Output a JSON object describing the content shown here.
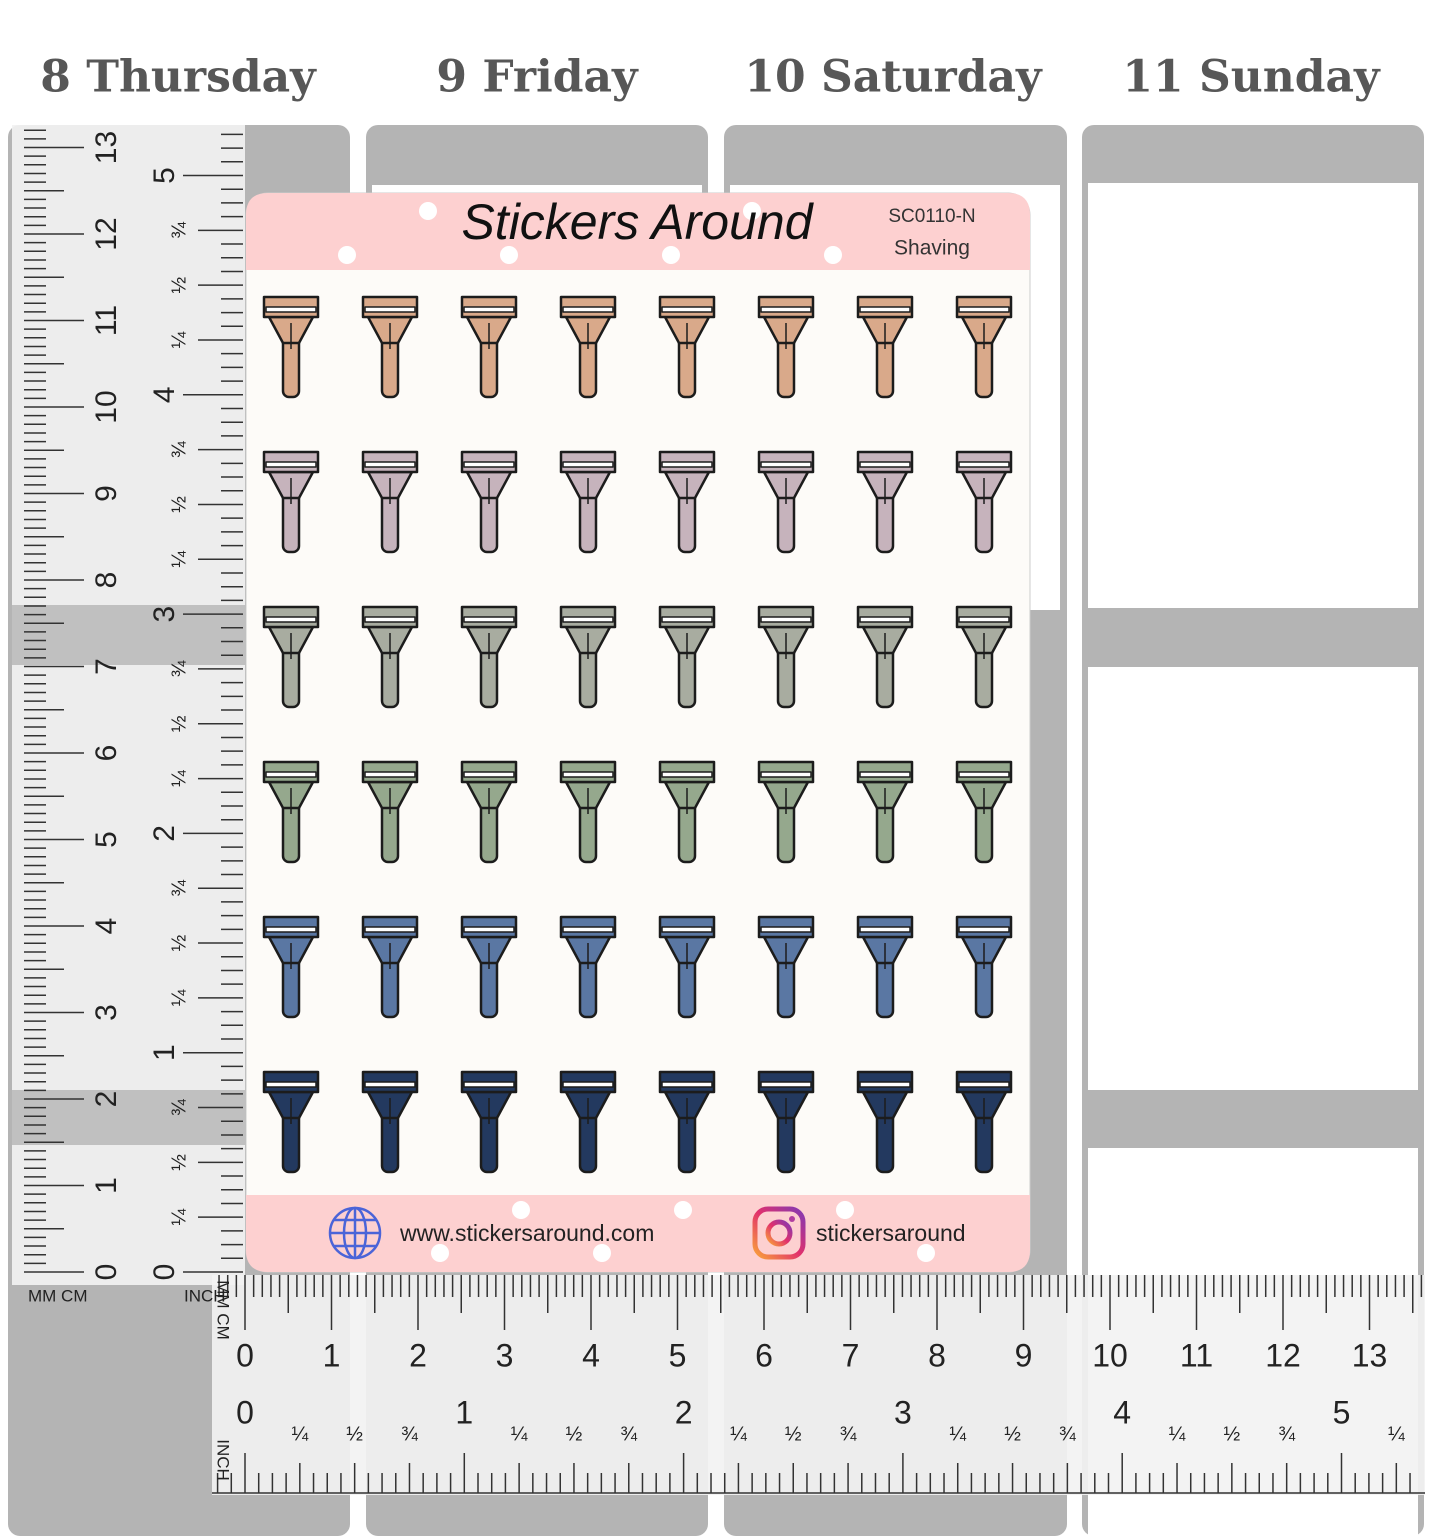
{
  "days": [
    "8 Thursday",
    "9 Friday",
    "10 Saturday",
    "11 Sunday"
  ],
  "sheet": {
    "title": "Stickers Around",
    "code": "SC0110-N",
    "name": "Shaving",
    "website": "www.stickersaround.com",
    "instagram": "stickersaround"
  },
  "razor_colors": [
    "#d9a98a",
    "#c6b3bc",
    "#a8aca0",
    "#95a88d",
    "#5a77a3",
    "#23395f"
  ],
  "ruler": {
    "unit_mm_cm": "MM CM",
    "unit_inch": "INCH",
    "cm_labels": [
      "0",
      "1",
      "2",
      "3",
      "4",
      "5",
      "6",
      "7",
      "8",
      "9",
      "10",
      "11",
      "12",
      "13"
    ],
    "inch_labels": [
      "0",
      "1",
      "2",
      "3",
      "4",
      "5"
    ],
    "fractions": [
      "¼",
      "½",
      "¾"
    ]
  }
}
